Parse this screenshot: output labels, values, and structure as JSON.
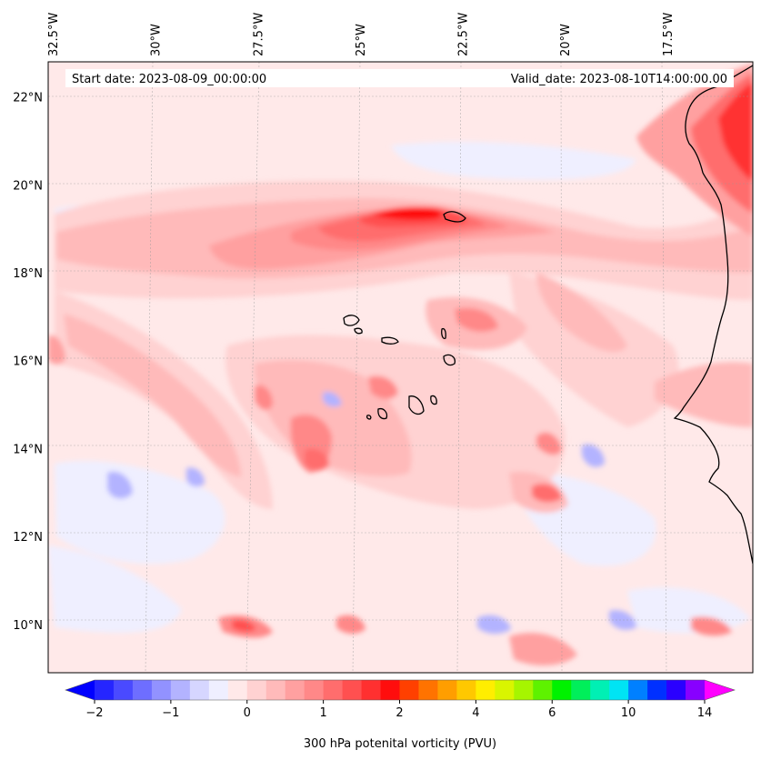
{
  "chart_data": {
    "type": "heatmap",
    "title": "",
    "start_date": "Start date: 2023-08-09_00:00:00",
    "valid_date": "Valid_date: 2023-08-10T14:00:00.00",
    "colorbar_label": "300 hPa potenital vorticity (PVU)",
    "colorbar_ticks": [
      "−2",
      "−1",
      "0",
      "1",
      "2",
      "4",
      "6",
      "10",
      "14"
    ],
    "colorbar_levels": [
      -2,
      -1.75,
      -1.5,
      -1.25,
      -1,
      -0.75,
      -0.5,
      -0.25,
      0,
      0.25,
      0.5,
      0.75,
      1,
      1.25,
      1.5,
      1.75,
      2,
      2.5,
      3,
      3.5,
      4,
      4.5,
      5,
      5.5,
      6,
      7,
      8,
      9,
      10,
      11,
      12,
      13,
      14
    ],
    "colorbar_colors": [
      "#0000ff",
      "#2525ff",
      "#4a4aff",
      "#6e6eff",
      "#9292ff",
      "#b3b3ff",
      "#d6d6ff",
      "#efefff",
      "#ffe9e9",
      "#ffd2d2",
      "#ffbaba",
      "#ffa0a0",
      "#ff8888",
      "#ff6d6d",
      "#ff5050",
      "#ff3030",
      "#ff0d0d",
      "#ff4000",
      "#ff7300",
      "#ff9e00",
      "#ffc800",
      "#ffee00",
      "#d9f500",
      "#a6f500",
      "#5ef200",
      "#00f200",
      "#00ef5a",
      "#00f0b4",
      "#00e4f4",
      "#0080ff",
      "#0030ff",
      "#2a00ff",
      "#8800ff",
      "#ff00ff"
    ],
    "lon_labels": [
      "32.5°W",
      "30°W",
      "27.5°W",
      "25°W",
      "22.5°W",
      "20°W",
      "17.5°W"
    ],
    "lon_values": [
      -32.5,
      -30,
      -27.5,
      -25,
      -22.5,
      -20,
      -17.5
    ],
    "lat_labels": [
      "22°N",
      "20°N",
      "18°N",
      "16°N",
      "14°N",
      "12°N",
      "10°N"
    ],
    "lat_values": [
      22,
      20,
      18,
      16,
      14,
      12,
      10
    ],
    "extent": {
      "lon": [
        -32.5,
        -15.3
      ],
      "lat": [
        8.9,
        22.8
      ]
    },
    "features": [
      {
        "name": "pv-band-main",
        "value": 0.75
      },
      {
        "name": "pv-band-core",
        "value": 1.25
      },
      {
        "name": "pv-max-19n",
        "value": 2.0
      },
      {
        "name": "pv-nw-band",
        "value": 0.6
      },
      {
        "name": "pv-ne-coastal-max",
        "value": 2.0
      },
      {
        "name": "pv-central-cells",
        "value": 1.2
      },
      {
        "name": "pv-cell-13n-20w",
        "value": 1.75
      },
      {
        "name": "pv-cell-10n-27w",
        "value": 1.8
      },
      {
        "name": "pv-negative-cell-13n-31w",
        "value": -1.0
      },
      {
        "name": "pv-negative-cell-10n-22w",
        "value": -0.5
      }
    ]
  }
}
